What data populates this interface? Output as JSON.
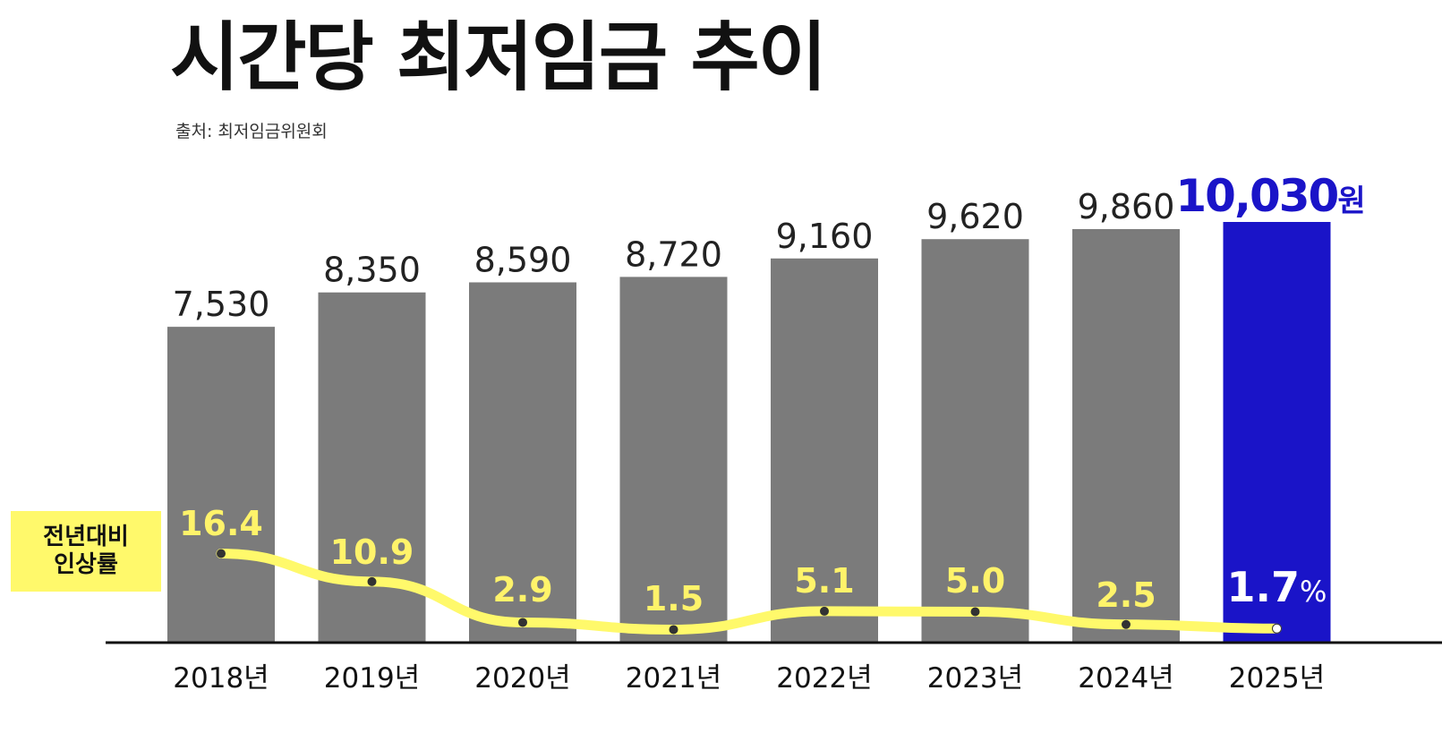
{
  "title": "시간당 최저임금 추이",
  "source": "출처: 최저임금위원회",
  "legend": {
    "label": "전년대비\n인상률"
  },
  "colors": {
    "bar": "#7b7b7b",
    "highlight_bar": "#1a14c8",
    "line": "#fff96b",
    "rate_text": "#fff36a",
    "highlight_value": "#1a14c8"
  },
  "chart_data": {
    "type": "bar",
    "categories": [
      "2018년",
      "2019년",
      "2020년",
      "2021년",
      "2022년",
      "2023년",
      "2024년",
      "2025년"
    ],
    "series": [
      {
        "values": [
          7530,
          8350,
          8590,
          8720,
          9160,
          9620,
          9860,
          10030
        ]
      },
      {
        "name": "전년대비 인상률",
        "type": "line",
        "values": [
          16.4,
          10.9,
          2.9,
          1.5,
          5.1,
          5.0,
          2.5,
          1.7
        ]
      }
    ],
    "value_labels": [
      "7,530",
      "8,350",
      "8,590",
      "8,720",
      "9,160",
      "9,620",
      "9,860",
      "10,030"
    ],
    "rate_labels": [
      "16.4",
      "10.9",
      "2.9",
      "1.5",
      "5.1",
      "5.0",
      "2.5",
      "1.7"
    ],
    "highlight_index": 7,
    "highlight_value_unit": "원",
    "highlight_rate_unit": "%",
    "ylim": [
      0,
      10030
    ],
    "grid": false,
    "legend_position": "left"
  }
}
